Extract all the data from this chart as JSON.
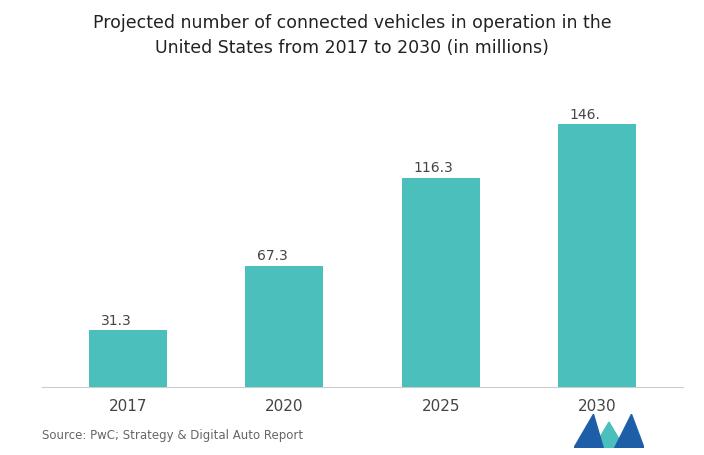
{
  "title": "Projected number of connected vehicles in operation in the\nUnited States from 2017 to 2030 (in millions)",
  "categories": [
    "2017",
    "2020",
    "2025",
    "2030"
  ],
  "values": [
    31.3,
    67.3,
    116.3,
    146.0
  ],
  "labels": [
    "31.3",
    "67.3",
    "116.3",
    "146."
  ],
  "bar_color": "#4bbfbb",
  "background_color": "#ffffff",
  "source_text": "Source: PwC; Strategy & Digital Auto Report",
  "title_fontsize": 12.5,
  "label_fontsize": 10,
  "tick_fontsize": 11,
  "source_fontsize": 8.5,
  "ylim": [
    0,
    165
  ]
}
